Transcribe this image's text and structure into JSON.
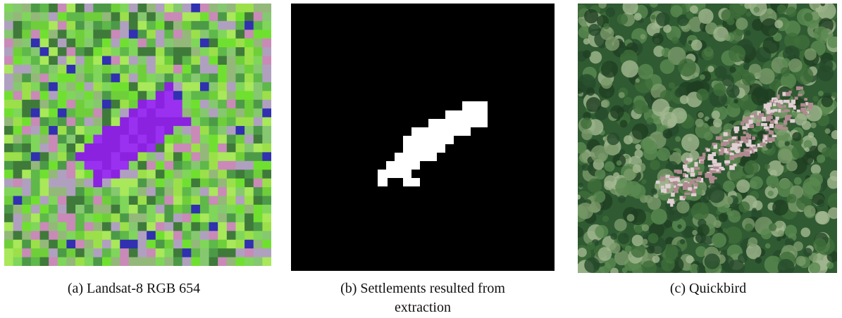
{
  "figure": {
    "panels": [
      {
        "caption": "(a) Landsat-8 RGB 654"
      },
      {
        "caption": "(b) Settlements resulted from extraction"
      },
      {
        "caption": "(c) Quickbird"
      }
    ]
  }
}
